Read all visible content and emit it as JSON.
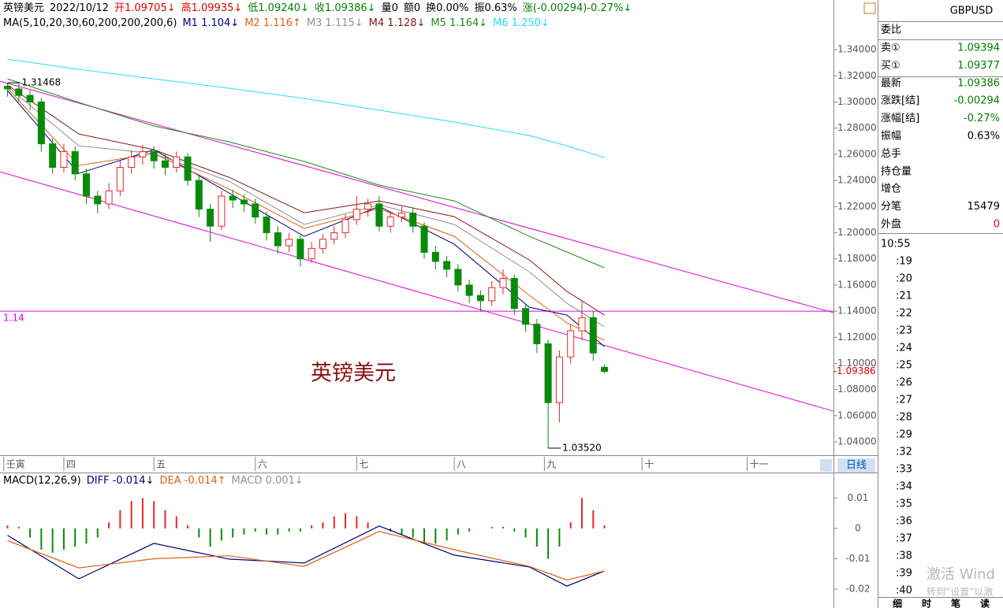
{
  "quote_bar": [
    {
      "text": "英镑美元",
      "color": "#000000"
    },
    {
      "text": "2022/10/12",
      "color": "#000000"
    },
    {
      "text": "开1.09705↓",
      "color": "#e00000"
    },
    {
      "text": "高1.09935↓",
      "color": "#e00000"
    },
    {
      "text": "低1.09240↓",
      "color": "#008000"
    },
    {
      "text": "收1.09386↓",
      "color": "#008000"
    },
    {
      "text": "量0",
      "color": "#000000"
    },
    {
      "text": "额0",
      "color": "#000000"
    },
    {
      "text": "换0.00%",
      "color": "#000000"
    },
    {
      "text": "振0.63%",
      "color": "#000000"
    },
    {
      "text": "涨(-0.00294)-0.27%↓",
      "color": "#008000"
    }
  ],
  "chart_data": [
    {
      "type": "candlestick",
      "title": "英镑美元",
      "indicator": "MA(5,10,20,30,60,200,200,200,6)",
      "x": [
        1,
        4,
        7,
        10,
        13,
        16,
        19,
        22,
        25,
        28,
        31,
        34,
        37,
        40,
        43,
        46,
        49,
        52,
        55,
        58,
        61,
        64,
        67,
        70,
        73,
        76,
        79,
        82,
        85,
        88,
        91,
        94,
        97,
        100,
        103,
        106,
        109,
        112,
        115,
        118,
        121,
        124,
        127,
        130,
        133,
        136,
        139,
        142,
        145,
        148,
        151,
        154,
        157,
        160
      ],
      "open": [
        1.312,
        1.31,
        1.305,
        1.3,
        1.268,
        1.25,
        1.262,
        1.245,
        1.228,
        1.222,
        1.232,
        1.25,
        1.258,
        1.262,
        1.255,
        1.25,
        1.258,
        1.24,
        1.218,
        1.205,
        1.228,
        1.225,
        1.222,
        1.212,
        1.2,
        1.19,
        1.195,
        1.18,
        1.188,
        1.195,
        1.2,
        1.21,
        1.218,
        1.222,
        1.205,
        1.212,
        1.215,
        1.205,
        1.185,
        1.178,
        1.172,
        1.16,
        1.152,
        1.148,
        1.158,
        1.165,
        1.142,
        1.13,
        1.115,
        1.07,
        1.105,
        1.125,
        1.135,
        1.09705
      ],
      "high": [
        1.31468,
        1.314,
        1.309,
        1.303,
        1.272,
        1.268,
        1.266,
        1.249,
        1.232,
        1.238,
        1.255,
        1.263,
        1.267,
        1.266,
        1.26,
        1.262,
        1.261,
        1.244,
        1.222,
        1.232,
        1.233,
        1.229,
        1.226,
        1.216,
        1.205,
        1.2,
        1.198,
        1.193,
        1.199,
        1.205,
        1.214,
        1.228,
        1.226,
        1.228,
        1.216,
        1.22,
        1.219,
        1.208,
        1.19,
        1.182,
        1.176,
        1.164,
        1.156,
        1.163,
        1.172,
        1.168,
        1.146,
        1.134,
        1.118,
        1.11,
        1.13,
        1.148,
        1.14,
        1.09935
      ],
      "low": [
        1.304,
        1.3,
        1.294,
        1.262,
        1.245,
        1.246,
        1.24,
        1.222,
        1.215,
        1.218,
        1.228,
        1.245,
        1.252,
        1.249,
        1.244,
        1.246,
        1.236,
        1.212,
        1.193,
        1.202,
        1.219,
        1.216,
        1.207,
        1.194,
        1.184,
        1.185,
        1.174,
        1.177,
        1.184,
        1.191,
        1.196,
        1.206,
        1.212,
        1.201,
        1.2,
        1.208,
        1.2,
        1.18,
        1.172,
        1.166,
        1.155,
        1.146,
        1.14,
        1.144,
        1.153,
        1.137,
        1.124,
        1.108,
        1.0352,
        1.055,
        1.1,
        1.118,
        1.102,
        1.0924
      ],
      "close": [
        1.31,
        1.305,
        1.3,
        1.268,
        1.25,
        1.262,
        1.245,
        1.228,
        1.222,
        1.232,
        1.25,
        1.258,
        1.262,
        1.255,
        1.25,
        1.258,
        1.24,
        1.218,
        1.205,
        1.228,
        1.225,
        1.222,
        1.212,
        1.2,
        1.19,
        1.195,
        1.18,
        1.188,
        1.195,
        1.2,
        1.21,
        1.218,
        1.222,
        1.205,
        1.212,
        1.215,
        1.205,
        1.185,
        1.178,
        1.172,
        1.16,
        1.152,
        1.148,
        1.158,
        1.165,
        1.142,
        1.13,
        1.115,
        1.07,
        1.105,
        1.125,
        1.135,
        1.108,
        1.09386
      ],
      "up_color": "#e8262a",
      "down_color": "#0a8a0a",
      "series": [
        {
          "name": "M1 1.104↓",
          "color": "#000080",
          "x": [
            1,
            20,
            40,
            60,
            80,
            100,
            120,
            140,
            150,
            160
          ],
          "values": [
            1.3087,
            1.2454,
            1.2635,
            1.2304,
            1.1972,
            1.2201,
            1.1912,
            1.143,
            1.137,
            1.1129
          ]
        },
        {
          "name": "M2 1.116↑",
          "color": "#e06010",
          "x": [
            1,
            20,
            40,
            60,
            80,
            100,
            120,
            140,
            150,
            160
          ],
          "values": [
            1.3105,
            1.2514,
            1.2605,
            1.2334,
            1.2033,
            1.2183,
            1.1972,
            1.1521,
            1.131,
            1.1178
          ]
        },
        {
          "name": "M3 1.115↓",
          "color": "#909090",
          "x": [
            1,
            20,
            40,
            60,
            80,
            100,
            120,
            140,
            150,
            160
          ],
          "values": [
            1.3117,
            1.2665,
            1.2605,
            1.2394,
            1.2063,
            1.2213,
            1.2063,
            1.1701,
            1.146,
            1.128
          ]
        },
        {
          "name": "M4 1.128↓",
          "color": "#801818",
          "x": [
            1,
            20,
            40,
            60,
            80,
            100,
            120,
            140,
            150,
            160
          ],
          "values": [
            1.3129,
            1.2755,
            1.2635,
            1.2424,
            1.2153,
            1.2243,
            1.2123,
            1.1792,
            1.1551,
            1.137
          ]
        },
        {
          "name": "M5 1.164↓",
          "color": "#1a8a1a",
          "x": [
            1,
            20,
            40,
            60,
            80,
            100,
            120,
            140,
            150,
            160
          ],
          "values": [
            1.3177,
            1.2996,
            1.2816,
            1.2695,
            1.2545,
            1.2364,
            1.2243,
            1.1972,
            1.1852,
            1.1731
          ]
        },
        {
          "name": "M6 1.250↓",
          "color": "#20e0f0",
          "x": [
            1,
            20,
            40,
            60,
            80,
            100,
            120,
            140,
            150,
            160
          ],
          "values": [
            1.3328,
            1.3249,
            1.3177,
            1.3105,
            1.3027,
            1.2937,
            1.2846,
            1.2743,
            1.2665,
            1.2575
          ]
        }
      ],
      "trend_lines": [
        {
          "x": [
            -1,
            221
          ],
          "values": [
            1.3159,
            1.1388
          ],
          "color": "#e000e0"
        },
        {
          "x": [
            -1,
            221
          ],
          "values": [
            1.2466,
            1.0635
          ],
          "color": "#e000e0"
        }
      ],
      "hlines": [
        {
          "value": 1.14,
          "label": "1.14",
          "color": "#e000e0"
        }
      ],
      "annotations": [
        {
          "x": 1,
          "value": 1.31468,
          "label": "1.31468"
        },
        {
          "x": 145,
          "value": 1.0352,
          "label": "1.03520"
        }
      ],
      "last_price": {
        "value": 1.09386,
        "label": "1.09386",
        "color": "#e00000"
      },
      "xlim": [
        -1,
        221
      ],
      "xticks": [
        {
          "value": 0,
          "label": "壬寅"
        },
        {
          "value": 16,
          "label": "四"
        },
        {
          "value": 40,
          "label": "五"
        },
        {
          "value": 67,
          "label": "六"
        },
        {
          "value": 94,
          "label": "七"
        },
        {
          "value": 120,
          "label": "八"
        },
        {
          "value": 144,
          "label": "九"
        },
        {
          "value": 170,
          "label": "十"
        },
        {
          "value": 198,
          "label": "十一"
        }
      ],
      "ylim": [
        1.0298,
        1.378
      ],
      "yticks": [
        {
          "value": 1.04,
          "label": "1.04000"
        },
        {
          "value": 1.06,
          "label": "1.06000"
        },
        {
          "value": 1.08,
          "label": "1.08000"
        },
        {
          "value": 1.1,
          "label": "1.10000"
        },
        {
          "value": 1.12,
          "label": "1.12000"
        },
        {
          "value": 1.14,
          "label": "1.14000"
        },
        {
          "value": 1.16,
          "label": "1.16000"
        },
        {
          "value": 1.18,
          "label": "1.18000"
        },
        {
          "value": 1.2,
          "label": "1.20000"
        },
        {
          "value": 1.22,
          "label": "1.22000"
        },
        {
          "value": 1.24,
          "label": "1.24000"
        },
        {
          "value": 1.26,
          "label": "1.26000"
        },
        {
          "value": 1.28,
          "label": "1.28000"
        },
        {
          "value": 1.3,
          "label": "1.30000"
        },
        {
          "value": 1.32,
          "label": "1.32000"
        },
        {
          "value": 1.34,
          "label": "1.34000"
        }
      ],
      "period_button": "日线"
    },
    {
      "type": "macd",
      "indicator": "MACD(12,26,9)",
      "histogram": {
        "name": "MACD 0.001↓",
        "color": "#909090",
        "up_color": "#e8262a",
        "down_color": "#0a8a0a",
        "x": [
          1,
          4,
          7,
          10,
          13,
          16,
          19,
          22,
          25,
          28,
          31,
          34,
          37,
          40,
          43,
          46,
          49,
          52,
          55,
          58,
          61,
          64,
          67,
          70,
          73,
          76,
          79,
          82,
          85,
          88,
          91,
          94,
          97,
          100,
          103,
          106,
          109,
          112,
          115,
          118,
          121,
          124,
          127,
          130,
          133,
          136,
          139,
          142,
          145,
          148,
          151,
          154,
          157,
          160
        ],
        "values": [
          0.001,
          0.0005,
          -0.003,
          -0.007,
          -0.008,
          -0.007,
          -0.006,
          -0.005,
          -0.003,
          0.002,
          0.006,
          0.009,
          0.01,
          0.009,
          0.006,
          0.004,
          0.001,
          -0.003,
          -0.006,
          -0.004,
          -0.003,
          -0.002,
          -0.001,
          -0.002,
          -0.002,
          -0.001,
          -0.001,
          0.001,
          0.002,
          0.004,
          0.005,
          0.004,
          0.002,
          0,
          -0.001,
          -0.002,
          -0.003,
          -0.005,
          -0.005,
          -0.004,
          -0.002,
          -0.001,
          0,
          0.0005,
          0.0005,
          -0.001,
          -0.003,
          -0.006,
          -0.01,
          -0.006,
          0.002,
          0.01,
          0.006,
          0.001
        ]
      },
      "series": [
        {
          "name": "DIFF -0.014↓",
          "color": "#000080",
          "x": [
            1,
            20,
            40,
            60,
            80,
            100,
            120,
            140,
            150,
            160
          ],
          "values": [
            -0.0023,
            -0.0166,
            -0.0049,
            -0.0101,
            -0.0114,
            0.0008,
            -0.0088,
            -0.0127,
            -0.019,
            -0.014
          ]
        },
        {
          "name": "DEA -0.014↑",
          "color": "#e06010",
          "x": [
            1,
            20,
            40,
            60,
            80,
            100,
            120,
            140,
            150,
            160
          ],
          "values": [
            -0.004,
            -0.013,
            -0.01,
            -0.009,
            -0.0125,
            -0.001,
            -0.007,
            -0.0125,
            -0.017,
            -0.014
          ]
        }
      ],
      "xlim": [
        -1,
        221
      ],
      "ylim": [
        -0.0262,
        0.0184
      ],
      "yticks": [
        -0.02,
        -0.01,
        0,
        0.01
      ]
    }
  ],
  "quote_panel": {
    "symbol": "GBPUSD",
    "title": "委比",
    "rows": [
      {
        "label": "卖①",
        "value": "1.09394",
        "color": "#008000"
      },
      {
        "label": "买①",
        "value": "1.09377",
        "color": "#008000"
      },
      {
        "label": "最新",
        "value": "1.09386",
        "color": "#008000"
      },
      {
        "label": "涨跌[结]",
        "value": "-0.00294",
        "color": "#008000"
      },
      {
        "label": "涨幅[结]",
        "value": "-0.27%",
        "color": "#008000"
      },
      {
        "label": "振幅",
        "value": "0.63%",
        "color": "#000000"
      },
      {
        "label": "总手"
      },
      {
        "label": "持仓量"
      },
      {
        "label": "增仓"
      },
      {
        "label": "分笔",
        "value": "15479",
        "color": "#000000"
      },
      {
        "label": "外盘",
        "value": "0",
        "color": "#e00000"
      }
    ],
    "times": [
      "10:55",
      ":19",
      ":20",
      ":21",
      ":22",
      ":23",
      ":24",
      ":25",
      ":26",
      ":27",
      ":28",
      ":29",
      ":32",
      ":33",
      ":34",
      ":35",
      ":36",
      ":37",
      ":38",
      ":39",
      ":40"
    ],
    "tabs": [
      "细",
      "时",
      "笔",
      "读"
    ]
  },
  "os_overlay": [
    "激活 Wind",
    "转到“设置”以激"
  ]
}
